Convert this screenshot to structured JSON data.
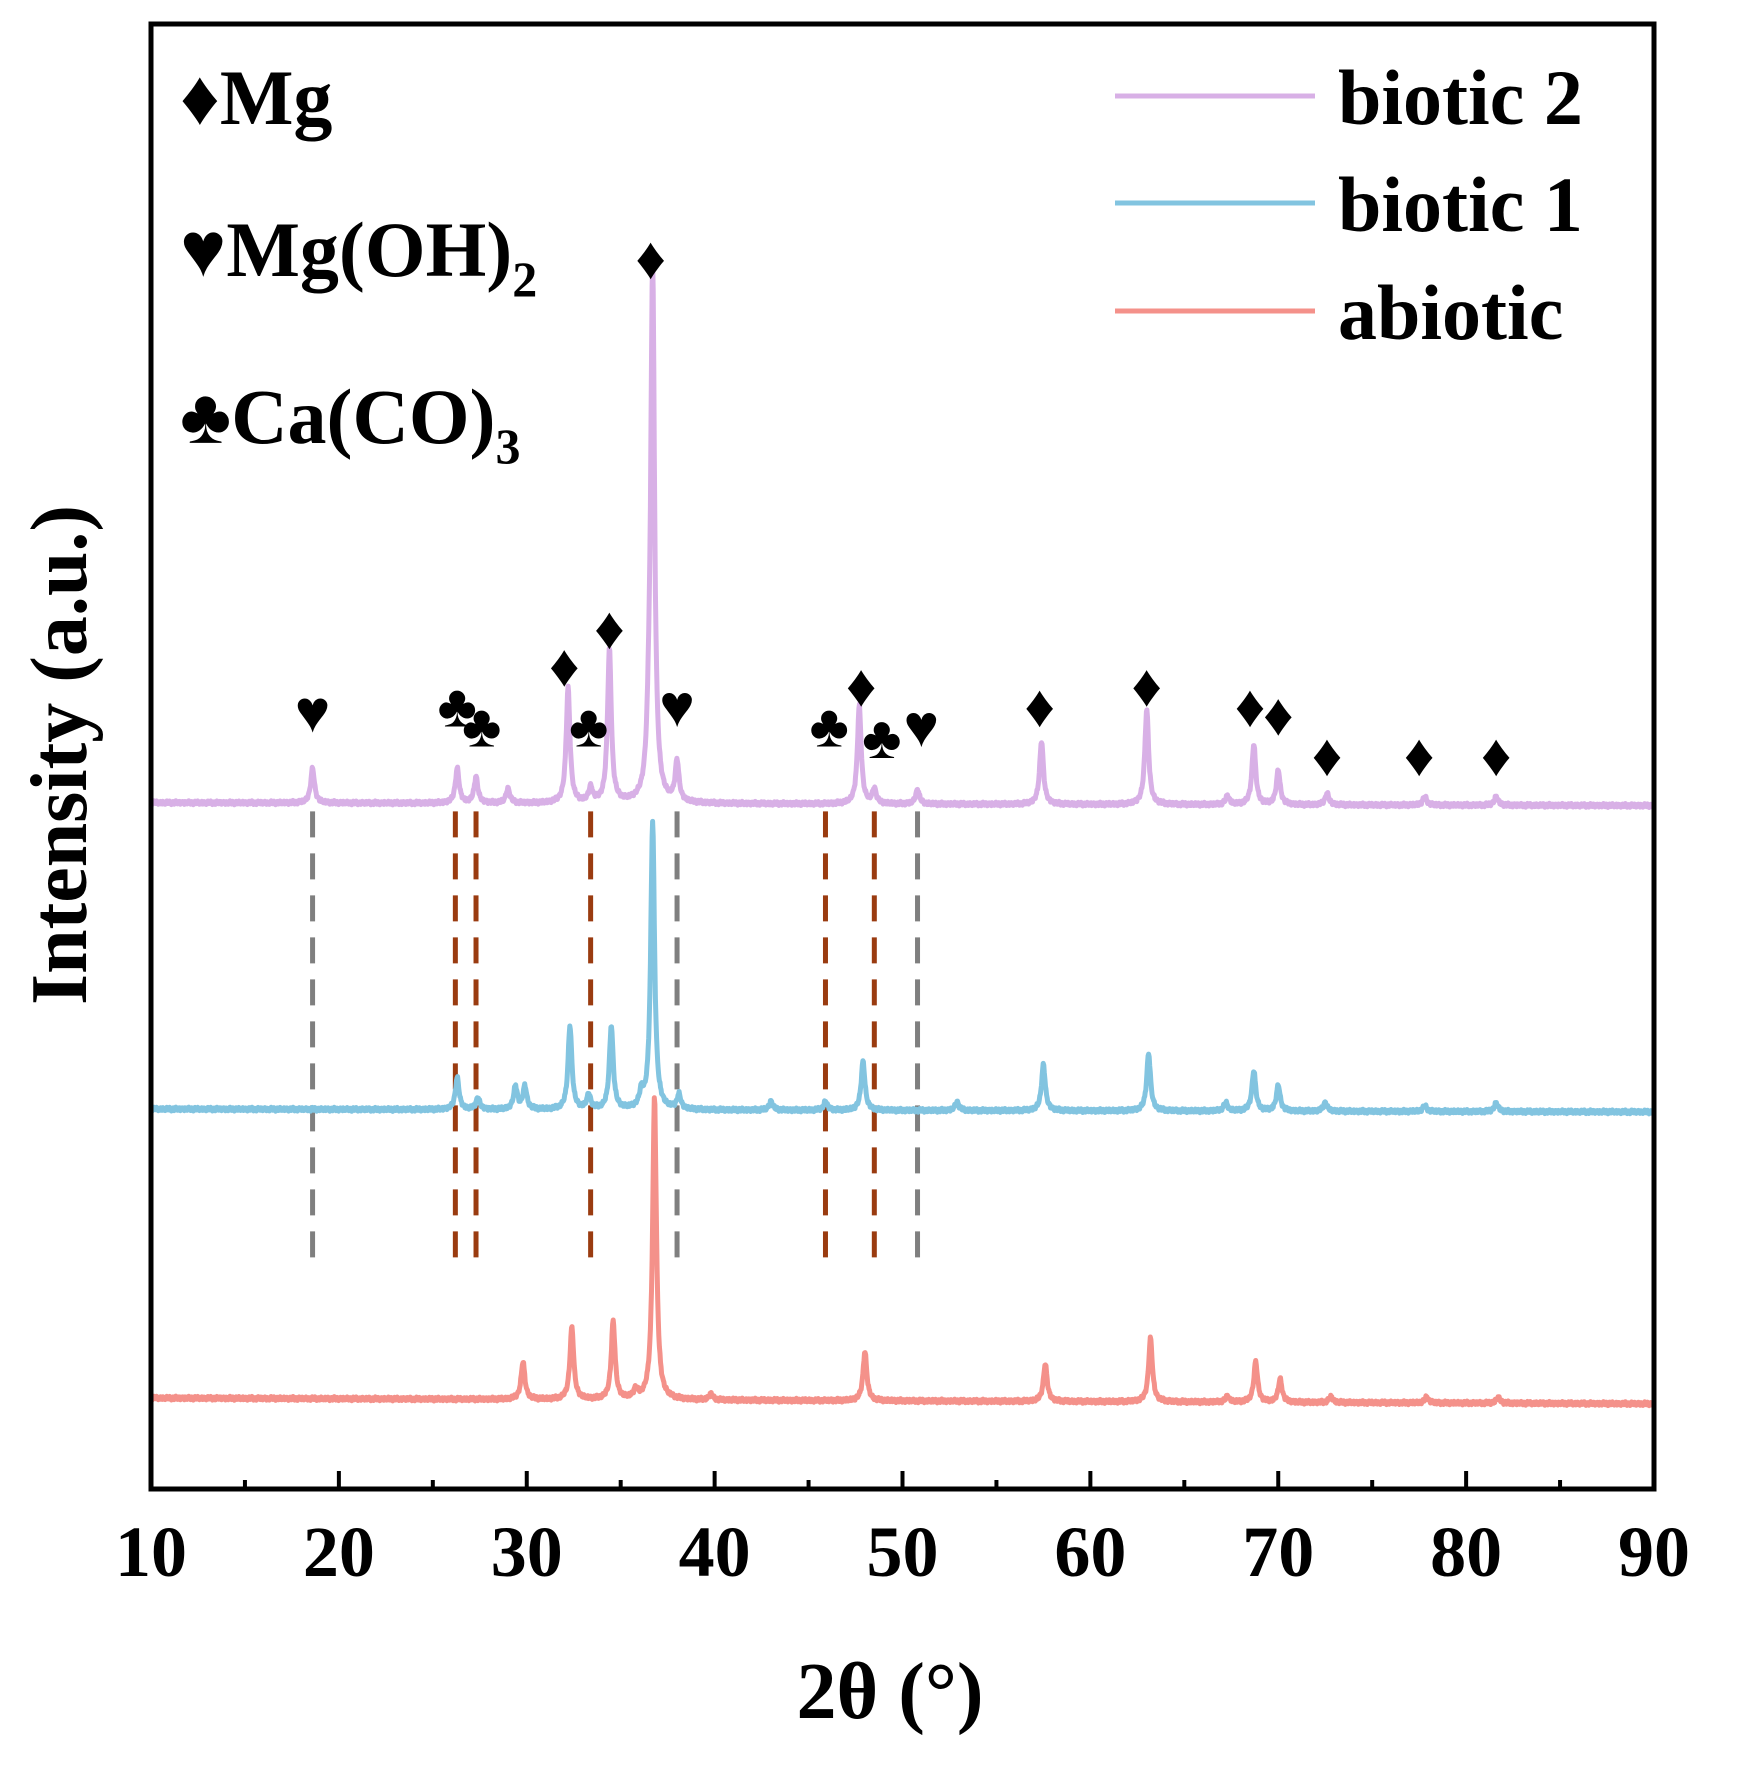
{
  "chart_data": {
    "type": "line",
    "title": "",
    "xlabel": "2θ (°)",
    "ylabel": "Intensity (a.u.)",
    "xlim": [
      10,
      90
    ],
    "xticks": [
      10,
      20,
      30,
      40,
      50,
      60,
      70,
      80,
      90
    ],
    "yticks": [],
    "grid": false,
    "legend_position": "top-right",
    "baseline_step": 0.03,
    "peak_width": 0.12,
    "series": [
      {
        "name": "biotic 2",
        "color": "#d8b0e6",
        "offset": 2.0,
        "baseline_start": 0.06,
        "baseline_end": 0.05,
        "peaks": [
          [
            18.6,
            0.12
          ],
          [
            26.3,
            0.12
          ],
          [
            27.3,
            0.09
          ],
          [
            29.0,
            0.05
          ],
          [
            32.2,
            0.4
          ],
          [
            33.4,
            0.05
          ],
          [
            34.4,
            0.53
          ],
          [
            36.5,
            0.14
          ],
          [
            36.7,
            1.85
          ],
          [
            38.0,
            0.14
          ],
          [
            47.7,
            0.34
          ],
          [
            48.5,
            0.05
          ],
          [
            50.8,
            0.05
          ],
          [
            57.4,
            0.22
          ],
          [
            63.0,
            0.33
          ],
          [
            67.3,
            0.03
          ],
          [
            68.7,
            0.21
          ],
          [
            70.0,
            0.12
          ],
          [
            72.6,
            0.04
          ],
          [
            77.8,
            0.03
          ],
          [
            81.6,
            0.03
          ]
        ]
      },
      {
        "name": "biotic 1",
        "color": "#82c4e0",
        "offset": 1.0,
        "baseline_start": 0.0,
        "baseline_end": -0.01,
        "peaks": [
          [
            26.3,
            0.11
          ],
          [
            27.4,
            0.04
          ],
          [
            29.4,
            0.08
          ],
          [
            29.9,
            0.08
          ],
          [
            32.3,
            0.29
          ],
          [
            33.3,
            0.05
          ],
          [
            34.5,
            0.29
          ],
          [
            36.1,
            0.05
          ],
          [
            36.7,
            1.0
          ],
          [
            38.1,
            0.05
          ],
          [
            43.0,
            0.03
          ],
          [
            45.9,
            0.03
          ],
          [
            47.9,
            0.17
          ],
          [
            52.9,
            0.03
          ],
          [
            57.5,
            0.16
          ],
          [
            63.1,
            0.2
          ],
          [
            67.2,
            0.03
          ],
          [
            68.7,
            0.14
          ],
          [
            70.0,
            0.09
          ],
          [
            72.5,
            0.03
          ],
          [
            77.8,
            0.02
          ],
          [
            81.6,
            0.03
          ]
        ]
      },
      {
        "name": "abiotic",
        "color": "#f4918a",
        "offset": 0.0,
        "baseline_start": 0.0,
        "baseline_end": -0.02,
        "peaks": [
          [
            29.8,
            0.13
          ],
          [
            32.4,
            0.25
          ],
          [
            34.6,
            0.27
          ],
          [
            35.8,
            0.03
          ],
          [
            36.8,
            1.05
          ],
          [
            39.8,
            0.02
          ],
          [
            48.0,
            0.17
          ],
          [
            57.6,
            0.13
          ],
          [
            63.2,
            0.22
          ],
          [
            67.3,
            0.02
          ],
          [
            68.8,
            0.14
          ],
          [
            70.1,
            0.08
          ],
          [
            72.8,
            0.02
          ],
          [
            77.9,
            0.02
          ],
          [
            81.7,
            0.02
          ]
        ]
      }
    ],
    "reference_lines": [
      {
        "x": 18.6,
        "phase": "Mg(OH)2",
        "color": "#7f7f7f"
      },
      {
        "x": 26.2,
        "phase": "Ca(CO)3",
        "color": "#9a3b10"
      },
      {
        "x": 27.3,
        "phase": "Ca(CO)3",
        "color": "#9a3b10"
      },
      {
        "x": 33.4,
        "phase": "Ca(CO)3",
        "color": "#9a3b10"
      },
      {
        "x": 38.0,
        "phase": "Mg(OH)2",
        "color": "#7f7f7f"
      },
      {
        "x": 45.9,
        "phase": "Ca(CO)3",
        "color": "#9a3b10"
      },
      {
        "x": 48.5,
        "phase": "Ca(CO)3",
        "color": "#9a3b10"
      },
      {
        "x": 50.8,
        "phase": "Mg(OH)2",
        "color": "#7f7f7f"
      }
    ],
    "markers": [
      {
        "symbol": "♥",
        "x": 18.6,
        "level": 2.38
      },
      {
        "symbol": "♣",
        "x": 26.3,
        "level": 2.4
      },
      {
        "symbol": "♣",
        "x": 27.6,
        "level": 2.33
      },
      {
        "symbol": "♦",
        "x": 32.0,
        "level": 2.54
      },
      {
        "symbol": "♣",
        "x": 33.3,
        "level": 2.33
      },
      {
        "symbol": "♦",
        "x": 34.4,
        "level": 2.67
      },
      {
        "symbol": "♦",
        "x": 36.6,
        "level": 3.95
      },
      {
        "symbol": "♥",
        "x": 38.0,
        "level": 2.4
      },
      {
        "symbol": "♣",
        "x": 46.1,
        "level": 2.33
      },
      {
        "symbol": "♦",
        "x": 47.8,
        "level": 2.47
      },
      {
        "symbol": "♣",
        "x": 48.9,
        "level": 2.29
      },
      {
        "symbol": "♥",
        "x": 51.0,
        "level": 2.33
      },
      {
        "symbol": "♦",
        "x": 57.3,
        "level": 2.4
      },
      {
        "symbol": "♦",
        "x": 63.0,
        "level": 2.47
      },
      {
        "symbol": "♦",
        "x": 68.5,
        "level": 2.4
      },
      {
        "symbol": "♦",
        "x": 70.0,
        "level": 2.37
      },
      {
        "symbol": "♦",
        "x": 72.6,
        "level": 2.23
      },
      {
        "symbol": "♦",
        "x": 77.5,
        "level": 2.23
      },
      {
        "symbol": "♦",
        "x": 81.6,
        "level": 2.23
      }
    ],
    "phase_legend": [
      {
        "symbol": "♦",
        "label": "Mg",
        "subscript": ""
      },
      {
        "symbol": "♥",
        "label": "Mg(OH)",
        "subscript": "2"
      },
      {
        "symbol": "♣",
        "label": "Ca(CO)",
        "subscript": "3"
      }
    ]
  }
}
